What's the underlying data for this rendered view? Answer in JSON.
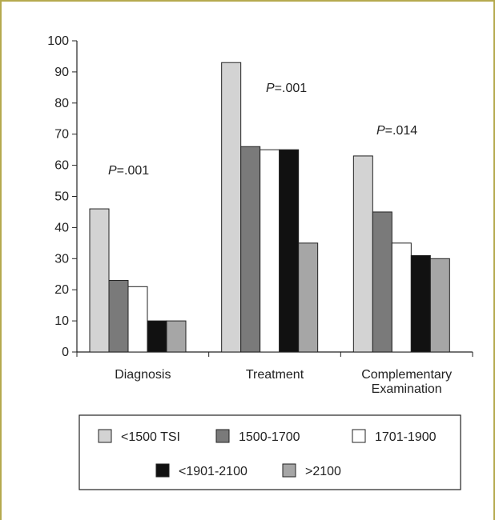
{
  "chart_data": {
    "type": "bar",
    "categories": [
      "Diagnosis",
      "Treatment",
      "Complementary Examination"
    ],
    "category_lines": [
      [
        "Diagnosis"
      ],
      [
        "Treatment"
      ],
      [
        "Complementary",
        "Examination"
      ]
    ],
    "series": [
      {
        "name": "<1500 TSI",
        "color": "#d3d3d3",
        "values": [
          46,
          93,
          63
        ]
      },
      {
        "name": "1500-1700",
        "color": "#7a7a7a",
        "values": [
          23,
          66,
          45
        ]
      },
      {
        "name": "1701-1900",
        "color": "#ffffff",
        "values": [
          21,
          65,
          35
        ]
      },
      {
        "name": "<1901-2100",
        "color": "#111111",
        "values": [
          10,
          65,
          31
        ]
      },
      {
        "name": ">2100",
        "color": "#a6a6a6",
        "values": [
          10,
          35,
          30
        ]
      }
    ],
    "annotations": [
      {
        "prefix": "P",
        "text": "=.001"
      },
      {
        "prefix": "P",
        "text": "=.001"
      },
      {
        "prefix": "P",
        "text": "=.014"
      }
    ],
    "ylim": [
      0,
      100
    ],
    "yticks": [
      0,
      10,
      20,
      30,
      40,
      50,
      60,
      70,
      80,
      90,
      100
    ],
    "legend_position": "bottom",
    "grid": false
  }
}
